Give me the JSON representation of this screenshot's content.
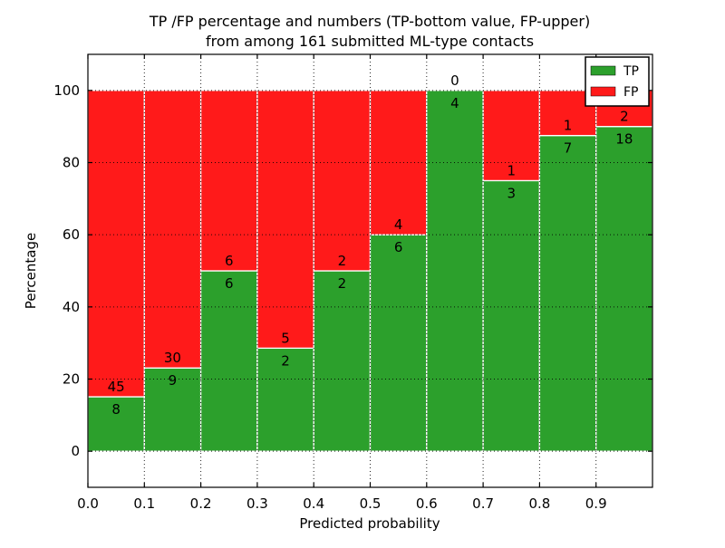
{
  "title": {
    "line1": "TP /FP percentage and numbers (TP-bottom value, FP-upper)",
    "line2": "from among 161 submitted ML-type contacts"
  },
  "chart_data": {
    "type": "bar",
    "stacked": true,
    "normalized_to_100_percent": true,
    "title": "TP /FP percentage and numbers (TP-bottom value, FP-upper)\nfrom among 161 submitted ML-type contacts",
    "xlabel": "Predicted probability",
    "ylabel": "Percentage",
    "xlim": [
      0.0,
      1.0
    ],
    "ylim": [
      -10,
      110
    ],
    "grid": true,
    "grid_style": "dotted",
    "bins": [
      [
        0.0,
        0.1
      ],
      [
        0.1,
        0.2
      ],
      [
        0.2,
        0.3
      ],
      [
        0.3,
        0.4
      ],
      [
        0.4,
        0.5
      ],
      [
        0.5,
        0.6
      ],
      [
        0.6,
        0.7
      ],
      [
        0.7,
        0.8
      ],
      [
        0.8,
        0.9
      ],
      [
        0.9,
        1.0
      ]
    ],
    "categories": [
      "0.0-0.1",
      "0.1-0.2",
      "0.2-0.3",
      "0.3-0.4",
      "0.4-0.5",
      "0.5-0.6",
      "0.6-0.7",
      "0.7-0.8",
      "0.8-0.9",
      "0.9-1.0"
    ],
    "x_ticks": [
      0.0,
      0.1,
      0.2,
      0.3,
      0.4,
      0.5,
      0.6,
      0.7,
      0.8,
      0.9
    ],
    "x_tick_labels": [
      "0.0",
      "0.1",
      "0.2",
      "0.3",
      "0.4",
      "0.5",
      "0.6",
      "0.7",
      "0.8",
      "0.9"
    ],
    "y_ticks": [
      0,
      20,
      40,
      60,
      80,
      100
    ],
    "y_tick_labels": [
      "0",
      "20",
      "40",
      "60",
      "80",
      "100"
    ],
    "series": [
      {
        "name": "TP",
        "color": "#2ca02c",
        "counts": [
          8,
          9,
          6,
          2,
          2,
          6,
          4,
          3,
          7,
          18
        ]
      },
      {
        "name": "FP",
        "color": "#ff1a1a",
        "counts": [
          45,
          30,
          6,
          5,
          2,
          4,
          0,
          1,
          1,
          2
        ]
      }
    ],
    "tp_percent": [
      15.1,
      23.1,
      50.0,
      28.6,
      50.0,
      60.0,
      100.0,
      75.0,
      87.5,
      90.0
    ],
    "total_contacts": 161,
    "bar_edge_color": "#ffffff",
    "legend": {
      "position": "upper right",
      "entries": [
        "TP",
        "FP"
      ]
    }
  }
}
